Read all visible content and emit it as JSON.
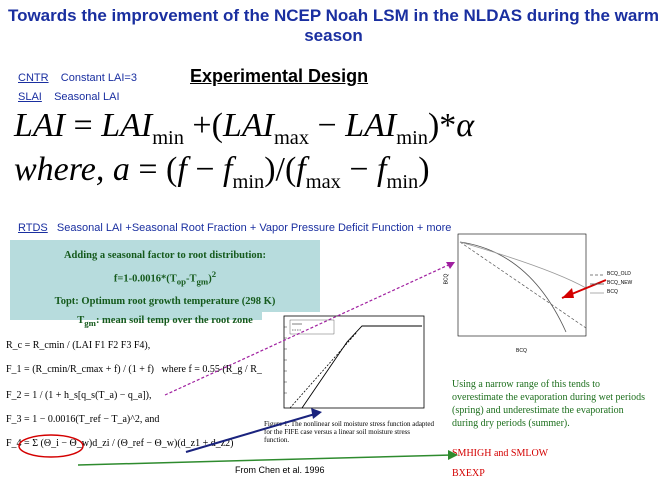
{
  "title": "Towards the improvement of the NCEP Noah LSM in the NLDAS during the warm season",
  "subtitle": "Experimental Design",
  "cntr": {
    "abbr": "CNTR",
    "desc": "Constant LAI=3"
  },
  "slai": {
    "abbr": "SLAI",
    "desc": "Seasonal LAI"
  },
  "equation1": {
    "lhs": "LAI",
    "eq": "=",
    "lai": "LAI",
    "min": "min",
    "plus": "+",
    "max": "max",
    "minus": "−",
    "times": "*",
    "alpha": "α"
  },
  "equation2": {
    "where": "where, a",
    "eq": "=",
    "f": "f",
    "min": "min",
    "max": "max",
    "minus": "−",
    "div": "/"
  },
  "rtds": {
    "abbr": "RTDS",
    "desc": "Seasonal LAI +Seasonal Root Fraction + Vapor Pressure Deficit Function + more"
  },
  "greenbox": {
    "line1": "Adding a seasonal factor to root distribution:",
    "line2": "f=1-0.0016*(T",
    "line2_sub1": "op",
    "line2_mid": "-T",
    "line2_sub2": "gm",
    "line2_end": ")",
    "line2_sup": "2",
    "line3": "Topt: Optimum root growth temperature (298 K)",
    "line4_pre": "T",
    "line4_sub": "gm",
    "line4_rest": ": mean soil temp over the root zone"
  },
  "formulas": {
    "rc": "R_c = R_cmin / (LAI F1 F2 F3 F4),",
    "f1": "F_1 = (R_cmin/R_cmax + f) / (1 + f)",
    "f1_where": "where  f = 0.55 (R_g / R_gl) (2 / LAI),",
    "f2": "F_2 = 1 / (1 + h_s[q_s(T_a) − q_a]),",
    "f3": "F_3 = 1 − 0.0016(T_ref − T_a)^2,   and",
    "f4": "F_4 = Σ (Θ_i − Θ_w)d_zi / (Θ_ref − Θ_w)(d_z1 + d_z2)"
  },
  "figure_caption": "Figure 1.  The nonlinear soil moisture stress function adapted for the FIFE case versus a linear soil moisture stress function.",
  "source": "From Chen et al. 1996",
  "note": "Using a narrow range of this tends to overestimate the evaporation during wet periods (spring) and underestimate the evaporation during dry periods (summer).",
  "red1": "SMHIGH and SMLOW",
  "red2": "BXEXP",
  "graph": {
    "ylabel": "BCQ",
    "xlabel": "BCQ",
    "legend": [
      "BCQ_OLD",
      "BCQ_NEW",
      "BCQ"
    ]
  },
  "colors": {
    "title": "#1a2fa0",
    "green_text": "#155a1c",
    "box": "#b7dcdd",
    "note": "#1d6f1d",
    "red": "#d40000",
    "arrow_green": "#2e8b2e",
    "arrow_blue": "#1a237e",
    "arrow_purple": "#a020a0"
  }
}
